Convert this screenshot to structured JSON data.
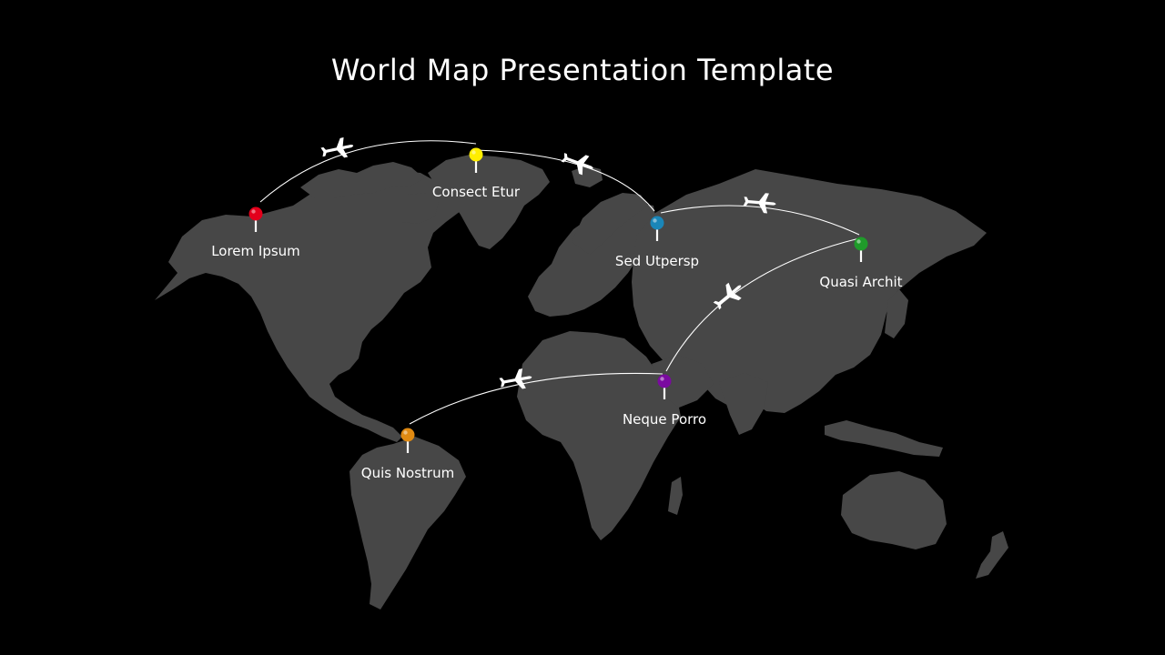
{
  "title": "World Map Presentation Template",
  "colors": {
    "background": "#000000",
    "land": "#474747",
    "route": "#ffffff",
    "label": "#ffffff"
  },
  "locations": [
    {
      "id": "lorem-ipsum",
      "label": "Lorem Ipsum",
      "pin_color": "#e3001b"
    },
    {
      "id": "consect-etur",
      "label": "Consect Etur",
      "pin_color": "#ffee00"
    },
    {
      "id": "sed-utpersp",
      "label": "Sed Utpersp",
      "pin_color": "#1a86b8"
    },
    {
      "id": "quasi-archit",
      "label": "Quasi Archit",
      "pin_color": "#1f9b2a"
    },
    {
      "id": "neque-porro",
      "label": "Neque Porro",
      "pin_color": "#7a0aa0"
    },
    {
      "id": "quis-nostrum",
      "label": "Quis Nostrum",
      "pin_color": "#e08a12"
    }
  ],
  "routes": [
    {
      "from": "lorem-ipsum",
      "to": "consect-etur",
      "icon": "airplane-icon"
    },
    {
      "from": "consect-etur",
      "to": "sed-utpersp",
      "icon": "airplane-icon"
    },
    {
      "from": "sed-utpersp",
      "to": "quasi-archit",
      "icon": "airplane-icon"
    },
    {
      "from": "quasi-archit",
      "to": "neque-porro",
      "icon": "airplane-icon"
    },
    {
      "from": "neque-porro",
      "to": "quis-nostrum",
      "icon": "airplane-icon"
    }
  ]
}
